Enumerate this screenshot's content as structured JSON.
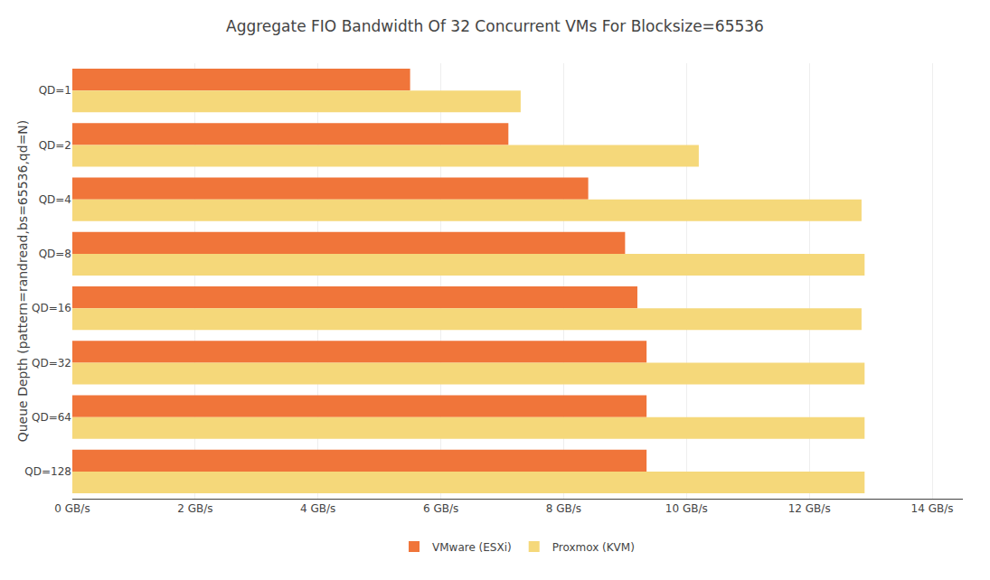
{
  "chart_data": {
    "type": "bar",
    "orientation": "horizontal",
    "title": "Aggregate FIO Bandwidth Of 32 Concurrent VMs For Blocksize=65536",
    "ylabel": "Queue Depth (pattern=randread,bs=65536,qd=N)",
    "categories": [
      "QD=1",
      "QD=2",
      "QD=4",
      "QD=8",
      "QD=16",
      "QD=32",
      "QD=64",
      "QD=128"
    ],
    "series": [
      {
        "name": "VMware (ESXi)",
        "color": "#f0753a",
        "values": [
          5.5,
          7.1,
          8.4,
          9.0,
          9.2,
          9.35,
          9.35,
          9.35
        ]
      },
      {
        "name": "Proxmox (KVM)",
        "color": "#f5d87a",
        "values": [
          7.3,
          10.2,
          12.85,
          12.9,
          12.85,
          12.9,
          12.9,
          12.9
        ]
      }
    ],
    "xlim": [
      0,
      14.5
    ],
    "xticks": [
      {
        "value": 0,
        "label": "0 GB/s"
      },
      {
        "value": 2,
        "label": "2 GB/s"
      },
      {
        "value": 4,
        "label": "4 GB/s"
      },
      {
        "value": 6,
        "label": "6 GB/s"
      },
      {
        "value": 8,
        "label": "8 GB/s"
      },
      {
        "value": 10,
        "label": "10 GB/s"
      },
      {
        "value": 12,
        "label": "12 GB/s"
      },
      {
        "value": 14,
        "label": "14 GB/s"
      }
    ],
    "grid": true,
    "legend": "bottom"
  }
}
